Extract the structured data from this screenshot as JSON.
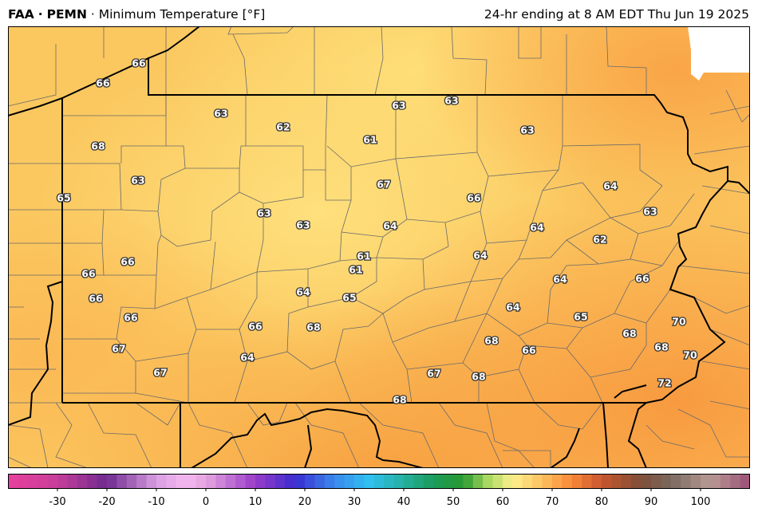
{
  "header": {
    "source": "FAA",
    "station": "PEMN",
    "variable": "Minimum Temperature [°F]",
    "valid": "24-hr ending at 8 AM EDT Thu Jun 19 2025"
  },
  "colors": {
    "land_low": "#fdd873",
    "land_mid": "#fbc45e",
    "land_high": "#f9a547",
    "no_data": "#ffffff",
    "county_line": "#6a6a6a",
    "state_line": "#000000"
  },
  "stations": [
    {
      "v": "66"
    },
    {
      "v": "66"
    },
    {
      "v": "63"
    },
    {
      "v": "62"
    },
    {
      "v": "63"
    },
    {
      "v": "63"
    },
    {
      "v": "61"
    },
    {
      "v": "63"
    },
    {
      "v": "68"
    },
    {
      "v": "63"
    },
    {
      "v": "67"
    },
    {
      "v": "65"
    },
    {
      "v": "66"
    },
    {
      "v": "64"
    },
    {
      "v": "63"
    },
    {
      "v": "63"
    },
    {
      "v": "63"
    },
    {
      "v": "64"
    },
    {
      "v": "64"
    },
    {
      "v": "62"
    },
    {
      "v": "61"
    },
    {
      "v": "64"
    },
    {
      "v": "66"
    },
    {
      "v": "61"
    },
    {
      "v": "66"
    },
    {
      "v": "64"
    },
    {
      "v": "66"
    },
    {
      "v": "65"
    },
    {
      "v": "64"
    },
    {
      "v": "65"
    },
    {
      "v": "68"
    },
    {
      "v": "70"
    },
    {
      "v": "66"
    },
    {
      "v": "66"
    },
    {
      "v": "68"
    },
    {
      "v": "68"
    },
    {
      "v": "68"
    },
    {
      "v": "67"
    },
    {
      "v": "66"
    },
    {
      "v": "70"
    },
    {
      "v": "67"
    },
    {
      "v": "64"
    },
    {
      "v": "67"
    },
    {
      "v": "68"
    },
    {
      "v": "72"
    },
    {
      "v": "68"
    }
  ],
  "colorbar": {
    "min": -40,
    "max": 110,
    "step": 2,
    "ticks": [
      "-30",
      "-20",
      "-10",
      "0",
      "10",
      "20",
      "30",
      "40",
      "50",
      "60",
      "70",
      "80",
      "90",
      "100"
    ],
    "stops": [
      {
        "v": -40,
        "c": "#e8409c"
      },
      {
        "v": -30,
        "c": "#c73e9a"
      },
      {
        "v": -20,
        "c": "#6e2a8f"
      },
      {
        "v": -10,
        "c": "#d79ee0"
      },
      {
        "v": -4,
        "c": "#f5b8f0"
      },
      {
        "v": 0,
        "c": "#e4a4de"
      },
      {
        "v": 10,
        "c": "#9a3cc8"
      },
      {
        "v": 18,
        "c": "#3a2cd0"
      },
      {
        "v": 26,
        "c": "#3a88ec"
      },
      {
        "v": 33,
        "c": "#30c0f0"
      },
      {
        "v": 40,
        "c": "#25b0a0"
      },
      {
        "v": 46,
        "c": "#1a9a5a"
      },
      {
        "v": 52,
        "c": "#2a9a30"
      },
      {
        "v": 57,
        "c": "#a8d860"
      },
      {
        "v": 62,
        "c": "#fdf08e"
      },
      {
        "v": 68,
        "c": "#fdc060"
      },
      {
        "v": 74,
        "c": "#f98838"
      },
      {
        "v": 80,
        "c": "#c8562e"
      },
      {
        "v": 88,
        "c": "#7e4e38"
      },
      {
        "v": 94,
        "c": "#7a6a60"
      },
      {
        "v": 102,
        "c": "#b89a94"
      },
      {
        "v": 110,
        "c": "#9a5076"
      }
    ]
  }
}
